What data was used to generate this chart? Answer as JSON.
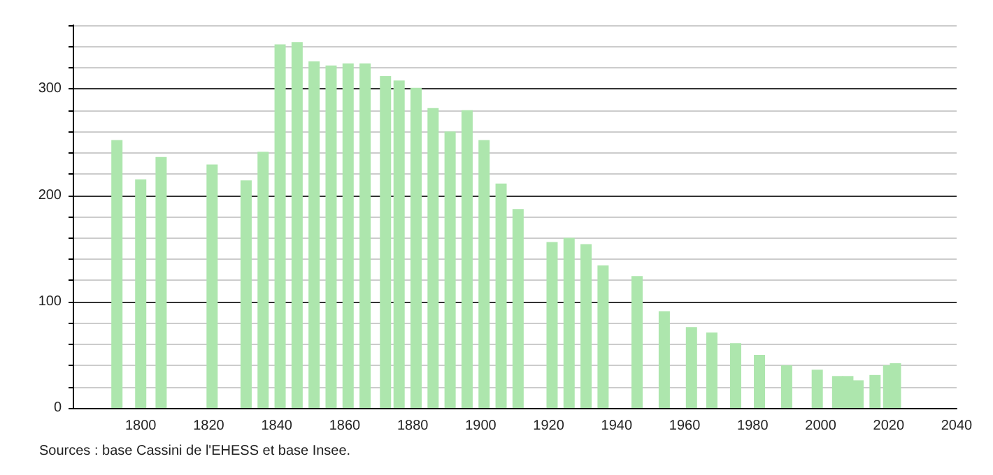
{
  "chart_data": {
    "type": "bar",
    "color": "#ade6ad",
    "x": [
      1793,
      1800,
      1806,
      1821,
      1831,
      1836,
      1841,
      1846,
      1851,
      1856,
      1861,
      1866,
      1872,
      1876,
      1881,
      1886,
      1891,
      1896,
      1901,
      1906,
      1911,
      1921,
      1926,
      1931,
      1936,
      1946,
      1954,
      1962,
      1968,
      1975,
      1982,
      1990,
      1999,
      2005,
      2008,
      2011,
      2016,
      2020,
      2022
    ],
    "values": [
      252,
      215,
      236,
      229,
      214,
      241,
      342,
      344,
      326,
      322,
      324,
      324,
      312,
      308,
      301,
      282,
      260,
      280,
      252,
      211,
      187,
      156,
      160,
      154,
      134,
      124,
      91,
      76,
      71,
      61,
      50,
      40,
      36,
      30,
      30,
      26,
      31,
      40,
      42
    ],
    "xlim": [
      1780,
      2040
    ],
    "xticks": [
      1800,
      1820,
      1840,
      1860,
      1880,
      1900,
      1920,
      1940,
      1960,
      1980,
      2000,
      2020,
      2040
    ],
    "ylim": [
      0,
      360
    ],
    "yticks": [
      0,
      {
        "value": 20,
        "label": null
      },
      {
        "value": 40,
        "label": null
      },
      {
        "value": 60,
        "label": null
      },
      {
        "value": 80,
        "label": null
      },
      100,
      {
        "value": 120,
        "label": null
      },
      {
        "value": 140,
        "label": null
      },
      {
        "value": 160,
        "label": null
      },
      {
        "value": 180,
        "label": null
      },
      200,
      {
        "value": 220,
        "label": null
      },
      {
        "value": 240,
        "label": null
      },
      {
        "value": 260,
        "label": null
      },
      {
        "value": 280,
        "label": null
      },
      300,
      {
        "value": 320,
        "label": null
      },
      {
        "value": 340,
        "label": null
      },
      {
        "value": 360,
        "label": null
      }
    ],
    "grid": "y",
    "annotations": [
      "Sources : base Cassini de l'EHESS et base Insee."
    ]
  }
}
